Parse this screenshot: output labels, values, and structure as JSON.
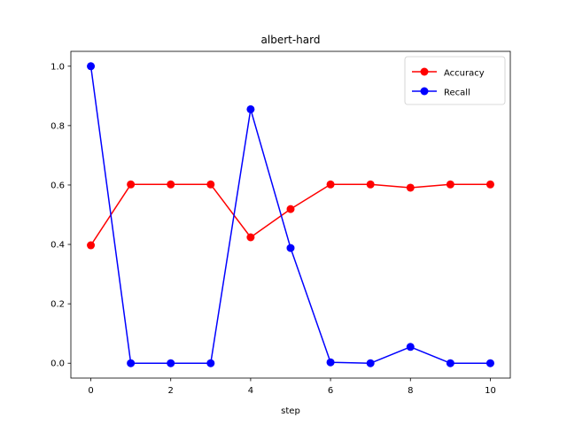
{
  "chart_data": {
    "type": "line",
    "title": "albert-hard",
    "xlabel": "step",
    "ylabel": "",
    "x": [
      0,
      1,
      2,
      3,
      4,
      5,
      6,
      7,
      8,
      9,
      10
    ],
    "xlim": [
      -0.5,
      10.5
    ],
    "ylim": [
      -0.05,
      1.05
    ],
    "xticks": [
      0,
      2,
      4,
      6,
      8,
      10
    ],
    "yticks": [
      0.0,
      0.2,
      0.4,
      0.6,
      0.8,
      1.0
    ],
    "xtick_labels": [
      "0",
      "2",
      "4",
      "6",
      "8",
      "10"
    ],
    "ytick_labels": [
      "0.0",
      "0.2",
      "0.4",
      "0.6",
      "0.8",
      "1.0"
    ],
    "grid": false,
    "legend_position": "top-right",
    "series": [
      {
        "name": "Accuracy",
        "color": "#ff0000",
        "marker": "circle",
        "values": [
          0.397,
          0.602,
          0.602,
          0.602,
          0.424,
          0.519,
          0.602,
          0.602,
          0.591,
          0.602,
          0.602
        ]
      },
      {
        "name": "Recall",
        "color": "#0000ff",
        "marker": "circle",
        "values": [
          1.0,
          0.0,
          0.0,
          0.0,
          0.855,
          0.388,
          0.003,
          0.0,
          0.055,
          0.0,
          0.0
        ]
      }
    ]
  }
}
